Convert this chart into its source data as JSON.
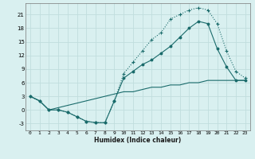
{
  "xlabel": "Humidex (Indice chaleur)",
  "ylabel": "",
  "background_color": "#d9f0f0",
  "grid_color": "#c0dede",
  "line_color": "#1a6b6b",
  "xlim": [
    -0.5,
    23.5
  ],
  "ylim": [
    -4.5,
    23.5
  ],
  "xticks": [
    0,
    1,
    2,
    3,
    4,
    5,
    6,
    7,
    8,
    9,
    10,
    11,
    12,
    13,
    14,
    15,
    16,
    17,
    18,
    19,
    20,
    21,
    22,
    23
  ],
  "yticks": [
    -3,
    0,
    3,
    6,
    9,
    12,
    15,
    18,
    21
  ],
  "series1_x": [
    0,
    1,
    2,
    3,
    4,
    5,
    6,
    7,
    8,
    9,
    10,
    11,
    12,
    13,
    14,
    15,
    16,
    17,
    18,
    19,
    20,
    21,
    22,
    23
  ],
  "series1_y": [
    3,
    2,
    0,
    0,
    -0.5,
    -1.5,
    -2.5,
    -2.8,
    -2.8,
    2,
    8,
    10.5,
    13,
    15.5,
    17,
    20,
    21,
    22,
    22.5,
    22,
    19,
    13,
    8.5,
    7
  ],
  "series2_x": [
    0,
    1,
    2,
    3,
    4,
    5,
    6,
    7,
    8,
    9,
    10,
    11,
    12,
    13,
    14,
    15,
    16,
    17,
    18,
    19,
    20,
    21,
    22,
    23
  ],
  "series2_y": [
    3,
    2,
    0,
    0,
    -0.5,
    -1.5,
    -2.5,
    -2.8,
    -2.8,
    2,
    7,
    8.5,
    10,
    11,
    12.5,
    14,
    16,
    18,
    19.5,
    19,
    13.5,
    9.5,
    6.5,
    6.5
  ],
  "series3_x": [
    0,
    1,
    2,
    3,
    4,
    5,
    6,
    7,
    8,
    9,
    10,
    11,
    12,
    13,
    14,
    15,
    16,
    17,
    18,
    19,
    20,
    21,
    22,
    23
  ],
  "series3_y": [
    3,
    2,
    0,
    0.5,
    1,
    1.5,
    2,
    2.5,
    3,
    3.5,
    4,
    4,
    4.5,
    5,
    5,
    5.5,
    5.5,
    6,
    6,
    6.5,
    6.5,
    6.5,
    6.5,
    6.5
  ]
}
